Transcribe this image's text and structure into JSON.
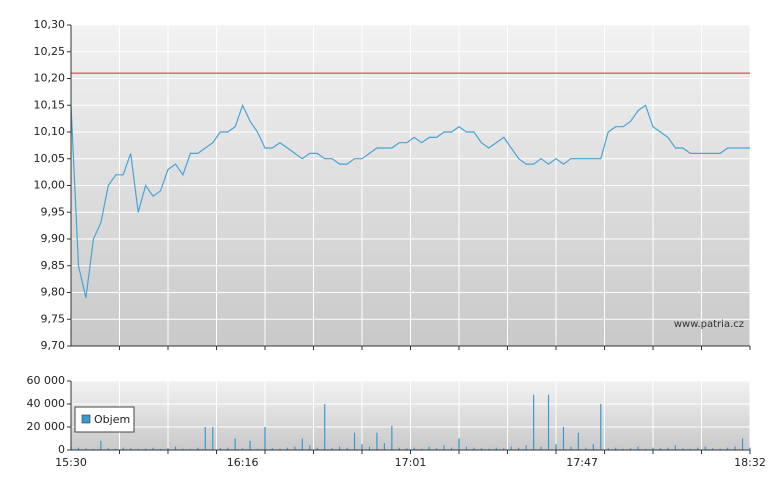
{
  "chart_data": [
    {
      "type": "line",
      "annotation": "www.patria.cz",
      "color": "#4aa3d6",
      "reference_line": {
        "value": 10.21,
        "color": "#d03030"
      },
      "x": [
        "15:30",
        "15:32",
        "15:34",
        "15:36",
        "15:38",
        "15:40",
        "15:42",
        "15:44",
        "15:46",
        "15:48",
        "15:50",
        "15:52",
        "15:54",
        "15:56",
        "15:58",
        "16:00",
        "16:02",
        "16:04",
        "16:06",
        "16:08",
        "16:10",
        "16:12",
        "16:14",
        "16:16",
        "16:18",
        "16:20",
        "16:22",
        "16:24",
        "16:26",
        "16:28",
        "16:30",
        "16:32",
        "16:34",
        "16:36",
        "16:38",
        "16:40",
        "16:42",
        "16:44",
        "16:46",
        "16:48",
        "16:50",
        "16:52",
        "16:54",
        "16:56",
        "16:58",
        "17:00",
        "17:02",
        "17:04",
        "17:06",
        "17:08",
        "17:10",
        "17:12",
        "17:14",
        "17:16",
        "17:18",
        "17:20",
        "17:22",
        "17:24",
        "17:26",
        "17:28",
        "17:30",
        "17:32",
        "17:34",
        "17:36",
        "17:38",
        "17:40",
        "17:42",
        "17:44",
        "17:46",
        "17:48",
        "17:50",
        "17:52",
        "17:54",
        "17:56",
        "17:58",
        "18:00",
        "18:02",
        "18:04",
        "18:06",
        "18:08",
        "18:10",
        "18:12",
        "18:14",
        "18:16",
        "18:18",
        "18:20",
        "18:22",
        "18:24",
        "18:26",
        "18:28",
        "18:30",
        "18:32"
      ],
      "values": [
        10.15,
        9.85,
        9.79,
        9.9,
        9.93,
        10.0,
        10.02,
        10.02,
        10.06,
        9.95,
        10.0,
        9.98,
        9.99,
        10.03,
        10.04,
        10.02,
        10.06,
        10.06,
        10.07,
        10.08,
        10.1,
        10.1,
        10.11,
        10.15,
        10.12,
        10.1,
        10.07,
        10.07,
        10.08,
        10.07,
        10.06,
        10.05,
        10.06,
        10.06,
        10.05,
        10.05,
        10.04,
        10.04,
        10.05,
        10.05,
        10.06,
        10.07,
        10.07,
        10.07,
        10.08,
        10.08,
        10.09,
        10.08,
        10.09,
        10.09,
        10.1,
        10.1,
        10.11,
        10.1,
        10.1,
        10.08,
        10.07,
        10.08,
        10.09,
        10.07,
        10.05,
        10.04,
        10.04,
        10.05,
        10.04,
        10.05,
        10.04,
        10.05,
        10.05,
        10.05,
        10.05,
        10.05,
        10.1,
        10.11,
        10.11,
        10.12,
        10.14,
        10.15,
        10.11,
        10.1,
        10.09,
        10.07,
        10.07,
        10.06,
        10.06,
        10.06,
        10.06,
        10.06,
        10.07,
        10.07,
        10.07,
        10.07
      ],
      "xlim": [
        "15:30",
        "18:32"
      ],
      "ylim": [
        9.7,
        10.3
      ],
      "yticks": [
        {
          "value": 9.7,
          "label": "9,70"
        },
        {
          "value": 9.75,
          "label": "9,75"
        },
        {
          "value": 9.8,
          "label": "9,80"
        },
        {
          "value": 9.85,
          "label": "9,85"
        },
        {
          "value": 9.9,
          "label": "9,90"
        },
        {
          "value": 9.95,
          "label": "9,95"
        },
        {
          "value": 10.0,
          "label": "10,00"
        },
        {
          "value": 10.05,
          "label": "10,05"
        },
        {
          "value": 10.1,
          "label": "10,10"
        },
        {
          "value": 10.15,
          "label": "10,15"
        },
        {
          "value": 10.2,
          "label": "10,20"
        },
        {
          "value": 10.25,
          "label": "10,25"
        },
        {
          "value": 10.3,
          "label": "10,30"
        }
      ],
      "grid": true
    },
    {
      "type": "bar",
      "x": [
        "15:30",
        "15:32",
        "15:34",
        "15:36",
        "15:38",
        "15:40",
        "15:42",
        "15:44",
        "15:46",
        "15:48",
        "15:50",
        "15:52",
        "15:54",
        "15:56",
        "15:58",
        "16:00",
        "16:02",
        "16:04",
        "16:06",
        "16:08",
        "16:10",
        "16:12",
        "16:14",
        "16:16",
        "16:18",
        "16:20",
        "16:22",
        "16:24",
        "16:26",
        "16:28",
        "16:30",
        "16:32",
        "16:34",
        "16:36",
        "16:38",
        "16:40",
        "16:42",
        "16:44",
        "16:46",
        "16:48",
        "16:50",
        "16:52",
        "16:54",
        "16:56",
        "16:58",
        "17:00",
        "17:02",
        "17:04",
        "17:06",
        "17:08",
        "17:10",
        "17:12",
        "17:14",
        "17:16",
        "17:18",
        "17:20",
        "17:22",
        "17:24",
        "17:26",
        "17:28",
        "17:30",
        "17:32",
        "17:34",
        "17:36",
        "17:38",
        "17:40",
        "17:42",
        "17:44",
        "17:46",
        "17:48",
        "17:50",
        "17:52",
        "17:54",
        "17:56",
        "17:58",
        "18:00",
        "18:02",
        "18:04",
        "18:06",
        "18:08",
        "18:10",
        "18:12",
        "18:14",
        "18:16",
        "18:18",
        "18:20",
        "18:22",
        "18:24",
        "18:26",
        "18:28",
        "18:30",
        "18:32"
      ],
      "series": [
        {
          "name": "Objem",
          "color": "#3a9ad0",
          "values": [
            3000,
            2000,
            1500,
            1000,
            8000,
            1500,
            1000,
            2000,
            1500,
            1000,
            1200,
            2000,
            1000,
            1500,
            3000,
            1200,
            1000,
            2000,
            20000,
            20000,
            1500,
            2000,
            10000,
            1500,
            8000,
            1000,
            20000,
            1500,
            1000,
            2000,
            3000,
            10000,
            4000,
            2000,
            40000,
            1500,
            3000,
            2000,
            15000,
            5000,
            3000,
            15000,
            6000,
            21000,
            2000,
            1500,
            2000,
            1000,
            3000,
            1500,
            4000,
            2000,
            10000,
            3000,
            2000,
            1500,
            1000,
            2000,
            1500,
            3000,
            2000,
            4000,
            48000,
            3000,
            48000,
            5000,
            20000,
            3000,
            15000,
            2000,
            5000,
            40000,
            1500,
            2000,
            1000,
            1500,
            3000,
            1000,
            2000,
            1500,
            2000,
            4000,
            1500,
            1000,
            2000,
            3000,
            1500,
            1000,
            2000,
            3000,
            10000,
            2000
          ]
        }
      ],
      "xlim": [
        "15:30",
        "18:32"
      ],
      "xticks": [
        "15:30",
        "16:16",
        "17:01",
        "17:47",
        "18:32"
      ],
      "ylim": [
        0,
        60000
      ],
      "yticks": [
        {
          "value": 0,
          "label": "0"
        },
        {
          "value": 20000,
          "label": "20 000"
        },
        {
          "value": 40000,
          "label": "40 000"
        },
        {
          "value": 60000,
          "label": "60 000"
        }
      ],
      "grid": true
    }
  ]
}
